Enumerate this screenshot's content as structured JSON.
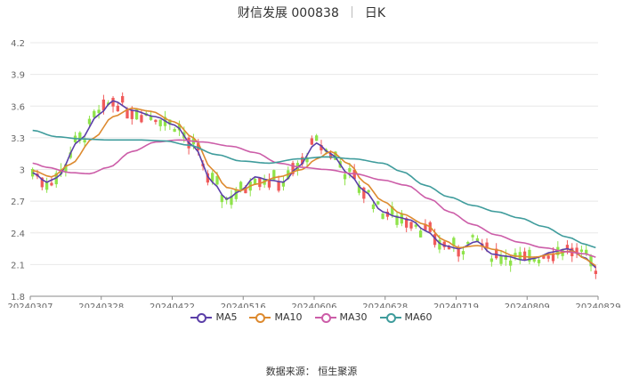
{
  "header": {
    "title": "财信发展 000838",
    "period": "日K"
  },
  "source": "数据来源： 恒生聚源",
  "colors": {
    "up": "#f05a5a",
    "down": "#8fe34a",
    "grid": "#e8e8e8"
  },
  "chart_data": {
    "type": "candlestick",
    "title": "财信发展 000838",
    "ylim": [
      1.8,
      4.2
    ],
    "yticks": [
      "4.2",
      "3.9",
      "3.6",
      "3.3",
      "3",
      "2.7",
      "2.4",
      "2.1",
      "1.8"
    ],
    "xticks": [
      "20240307",
      "20240328",
      "20240422",
      "20240516",
      "20240606",
      "20240628",
      "20240719",
      "20240809",
      "20240829"
    ],
    "days": 120,
    "ma_anchors": {
      "MA5": [
        [
          0,
          2.97
        ],
        [
          3,
          2.88
        ],
        [
          5,
          2.92
        ],
        [
          10,
          3.28
        ],
        [
          14,
          3.52
        ],
        [
          17,
          3.65
        ],
        [
          21,
          3.56
        ],
        [
          26,
          3.5
        ],
        [
          30,
          3.42
        ],
        [
          34,
          3.22
        ],
        [
          38,
          2.88
        ],
        [
          41,
          2.72
        ],
        [
          44,
          2.8
        ],
        [
          47,
          2.93
        ],
        [
          50,
          2.9
        ],
        [
          53,
          2.88
        ],
        [
          56,
          3.02
        ],
        [
          60,
          3.25
        ],
        [
          63,
          3.15
        ],
        [
          67,
          2.95
        ],
        [
          70,
          2.8
        ],
        [
          74,
          2.6
        ],
        [
          77,
          2.55
        ],
        [
          80,
          2.52
        ],
        [
          83,
          2.42
        ],
        [
          87,
          2.28
        ],
        [
          90,
          2.25
        ],
        [
          94,
          2.32
        ],
        [
          97,
          2.2
        ],
        [
          100,
          2.18
        ],
        [
          104,
          2.14
        ],
        [
          106,
          2.16
        ],
        [
          110,
          2.22
        ],
        [
          113,
          2.25
        ],
        [
          117,
          2.16
        ],
        [
          119,
          2.07
        ]
      ],
      "MA10": [
        [
          0,
          2.99
        ],
        [
          4,
          2.93
        ],
        [
          8,
          3.05
        ],
        [
          13,
          3.3
        ],
        [
          17,
          3.5
        ],
        [
          21,
          3.58
        ],
        [
          25,
          3.55
        ],
        [
          30,
          3.45
        ],
        [
          34,
          3.3
        ],
        [
          38,
          3.0
        ],
        [
          41,
          2.83
        ],
        [
          44,
          2.8
        ],
        [
          47,
          2.86
        ],
        [
          52,
          2.93
        ],
        [
          57,
          3.0
        ],
        [
          60,
          3.1
        ],
        [
          63,
          3.17
        ],
        [
          67,
          3.05
        ],
        [
          70,
          2.88
        ],
        [
          74,
          2.7
        ],
        [
          78,
          2.58
        ],
        [
          83,
          2.48
        ],
        [
          87,
          2.33
        ],
        [
          90,
          2.26
        ],
        [
          94,
          2.28
        ],
        [
          98,
          2.24
        ],
        [
          102,
          2.18
        ],
        [
          106,
          2.17
        ],
        [
          110,
          2.2
        ],
        [
          114,
          2.23
        ],
        [
          117,
          2.15
        ],
        [
          119,
          2.09
        ]
      ],
      "MA30": [
        [
          0,
          3.06
        ],
        [
          3,
          3.02
        ],
        [
          8,
          2.97
        ],
        [
          12,
          2.96
        ],
        [
          16,
          3.02
        ],
        [
          21,
          3.17
        ],
        [
          26,
          3.26
        ],
        [
          31,
          3.28
        ],
        [
          36,
          3.26
        ],
        [
          42,
          3.22
        ],
        [
          47,
          3.16
        ],
        [
          52,
          3.06
        ],
        [
          57,
          3.02
        ],
        [
          62,
          3.0
        ],
        [
          68,
          2.96
        ],
        [
          74,
          2.9
        ],
        [
          79,
          2.85
        ],
        [
          84,
          2.72
        ],
        [
          88,
          2.6
        ],
        [
          93,
          2.48
        ],
        [
          98,
          2.38
        ],
        [
          103,
          2.31
        ],
        [
          108,
          2.26
        ],
        [
          113,
          2.22
        ],
        [
          117,
          2.2
        ],
        [
          119,
          2.17
        ]
      ],
      "MA60": [
        [
          0,
          3.37
        ],
        [
          5,
          3.31
        ],
        [
          10,
          3.29
        ],
        [
          16,
          3.28
        ],
        [
          22,
          3.28
        ],
        [
          28,
          3.27
        ],
        [
          33,
          3.23
        ],
        [
          39,
          3.14
        ],
        [
          44,
          3.08
        ],
        [
          50,
          3.06
        ],
        [
          56,
          3.1
        ],
        [
          62,
          3.12
        ],
        [
          68,
          3.1
        ],
        [
          74,
          3.06
        ],
        [
          78,
          2.98
        ],
        [
          83,
          2.85
        ],
        [
          88,
          2.74
        ],
        [
          93,
          2.66
        ],
        [
          98,
          2.6
        ],
        [
          103,
          2.54
        ],
        [
          108,
          2.46
        ],
        [
          113,
          2.36
        ],
        [
          117,
          2.29
        ],
        [
          119,
          2.26
        ]
      ]
    },
    "legend": [
      "MA5",
      "MA10",
      "MA30",
      "MA60"
    ],
    "legend_colors": [
      "#5b3fa8",
      "#dd8a2f",
      "#cc5da8",
      "#3f9c9c"
    ],
    "legend_position": "bottom"
  }
}
